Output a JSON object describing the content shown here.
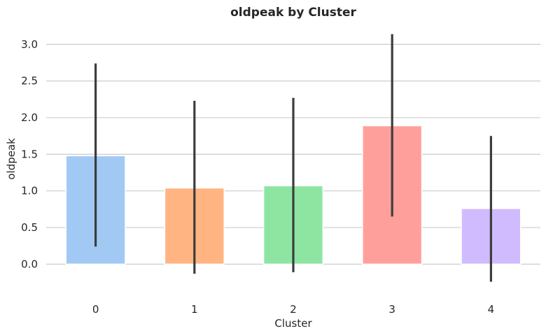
{
  "chart_data": {
    "type": "bar",
    "title": "oldpeak by Cluster",
    "xlabel": "Cluster",
    "ylabel": "oldpeak",
    "categories": [
      "0",
      "1",
      "2",
      "3",
      "4"
    ],
    "values": [
      1.48,
      1.04,
      1.07,
      1.89,
      0.76
    ],
    "error_low": [
      0.24,
      -0.13,
      -0.11,
      0.65,
      -0.24
    ],
    "error_high": [
      2.74,
      2.23,
      2.27,
      3.14,
      1.75
    ],
    "colors": [
      "#a1c9f4",
      "#ffb482",
      "#8de5a1",
      "#ff9f9b",
      "#d0bbff"
    ],
    "error_color": "#3d3d3d",
    "ylim": [
      -0.35,
      3.3
    ],
    "yticks": [
      0.0,
      0.5,
      1.0,
      1.5,
      2.0,
      2.5,
      3.0
    ],
    "ytick_labels": [
      "0.0",
      "0.5",
      "1.0",
      "1.5",
      "2.0",
      "2.5",
      "3.0"
    ],
    "grid": "horizontal",
    "legend": "none"
  }
}
